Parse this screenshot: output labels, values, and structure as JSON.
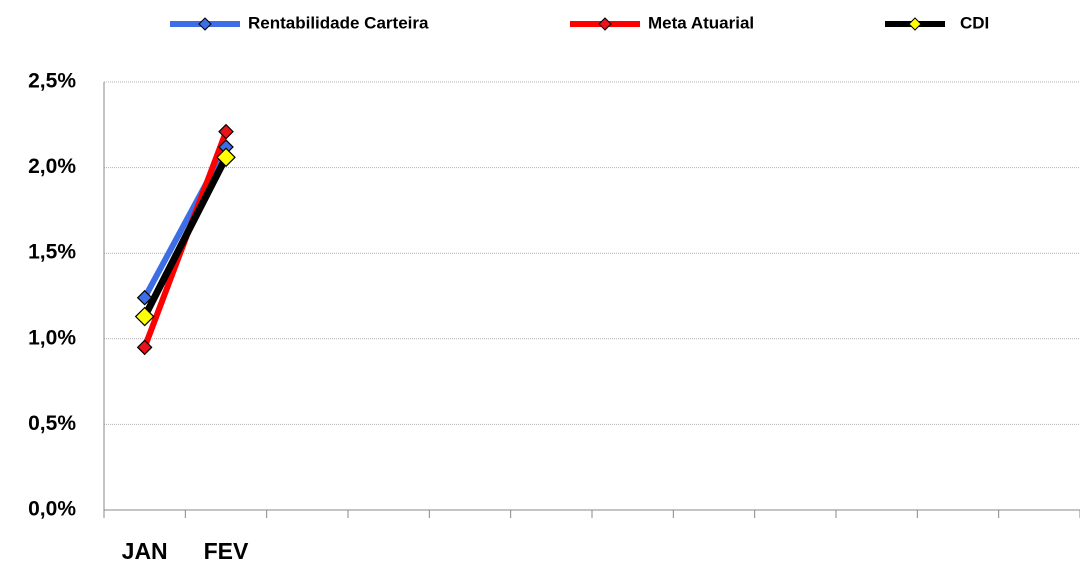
{
  "chart_data": {
    "type": "line",
    "categories": [
      "JAN",
      "FEV",
      null,
      null,
      null,
      null,
      null,
      null,
      null,
      null,
      null,
      null
    ],
    "series": [
      {
        "name": "Rentabilidade Carteira",
        "color": "#3d6ee6",
        "marker_color": "#3d6ee6",
        "values": [
          1.24,
          2.12,
          null,
          null,
          null,
          null,
          null,
          null,
          null,
          null,
          null,
          null
        ]
      },
      {
        "name": "Meta Atuarial",
        "color": "#ff0000",
        "marker_color": "#e8121b",
        "values": [
          0.95,
          2.21,
          null,
          null,
          null,
          null,
          null,
          null,
          null,
          null,
          null,
          null
        ]
      },
      {
        "name": "CDI",
        "color": "#000000",
        "marker_color": "#ffff00",
        "values": [
          1.13,
          2.06,
          null,
          null,
          null,
          null,
          null,
          null,
          null,
          null,
          null,
          null
        ]
      }
    ],
    "ylim": [
      0,
      2.5
    ],
    "yticks": [
      {
        "value": 0,
        "label": "0,0%"
      },
      {
        "value": 0.5,
        "label": "0,5%"
      },
      {
        "value": 1,
        "label": "1,0%"
      },
      {
        "value": 1.5,
        "label": "1,5%"
      },
      {
        "value": 2,
        "label": "2,0%"
      },
      {
        "value": 2.5,
        "label": "2,5%"
      }
    ],
    "grid": true,
    "legend": "top"
  }
}
